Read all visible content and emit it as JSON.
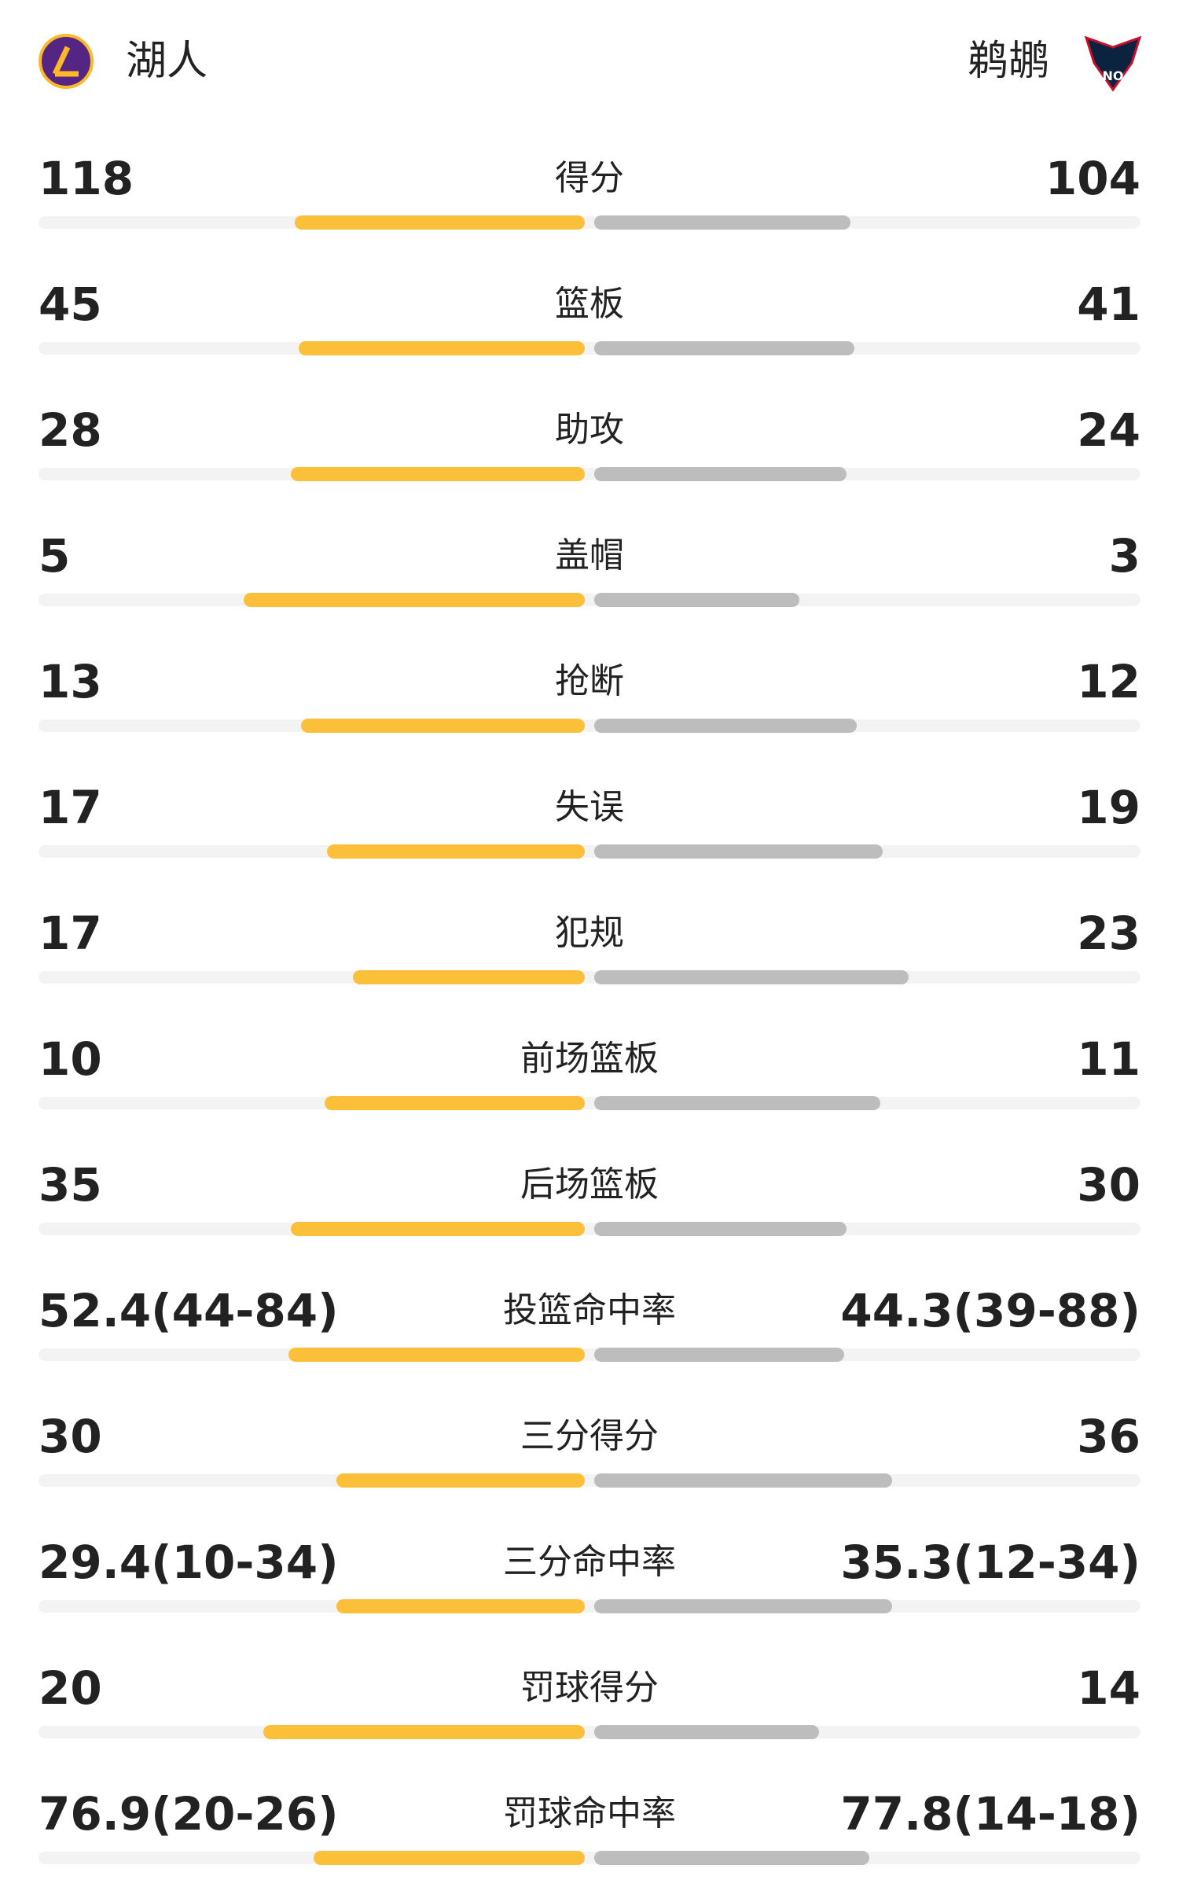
{
  "header": {
    "home": "湖人",
    "away": "鹈鹕"
  },
  "rows": [
    {
      "label": "得分",
      "home": 118,
      "away": 104
    },
    {
      "label": "篮板",
      "home": 45,
      "away": 41
    },
    {
      "label": "助攻",
      "home": 28,
      "away": 24
    },
    {
      "label": "盖帽",
      "home": 5,
      "away": 3
    },
    {
      "label": "抢断",
      "home": 13,
      "away": 12
    },
    {
      "label": "失误",
      "home": 17,
      "away": 19
    },
    {
      "label": "犯规",
      "home": 17,
      "away": 23
    },
    {
      "label": "前场篮板",
      "home": 10,
      "away": 11
    },
    {
      "label": "后场篮板",
      "home": 35,
      "away": 30
    },
    {
      "label": "投篮命中率",
      "home": "52.4(44-84)",
      "away": "44.3(39-88)"
    },
    {
      "label": "三分得分",
      "home": 30,
      "away": 36
    },
    {
      "label": "三分命中率",
      "home": "29.4(10-34)",
      "away": "35.3(12-34)"
    },
    {
      "label": "罚球得分",
      "home": 20,
      "away": 14
    },
    {
      "label": "罚球命中率",
      "home": "76.9(20-26)",
      "away": "77.8(14-18)"
    }
  ]
}
